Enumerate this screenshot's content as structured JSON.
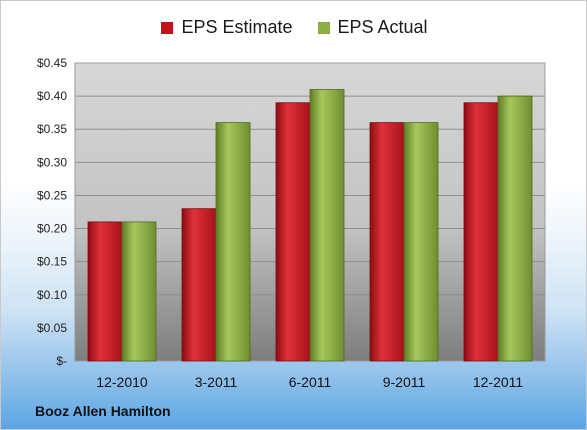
{
  "chart_data": {
    "type": "bar",
    "categories": [
      "12-2010",
      "3-2011",
      "6-2011",
      "9-2011",
      "12-2011"
    ],
    "series": [
      {
        "name": "EPS Estimate",
        "values": [
          0.21,
          0.23,
          0.39,
          0.36,
          0.39
        ],
        "color": "#c0141c"
      },
      {
        "name": "EPS Actual",
        "values": [
          0.21,
          0.36,
          0.41,
          0.36,
          0.4
        ],
        "color": "#8cb046"
      }
    ],
    "ylim": [
      0,
      0.45
    ],
    "yticks": [
      0,
      0.05,
      0.1,
      0.15,
      0.2,
      0.25,
      0.3,
      0.35,
      0.4,
      0.45
    ],
    "ytick_labels": [
      "$-",
      "$0.05",
      "$0.10",
      "$0.15",
      "$0.20",
      "$0.25",
      "$0.30",
      "$0.35",
      "$0.40",
      "$0.45"
    ],
    "grid": true,
    "legend_position": "top"
  },
  "footer": {
    "company": "Booz Allen Hamilton"
  }
}
